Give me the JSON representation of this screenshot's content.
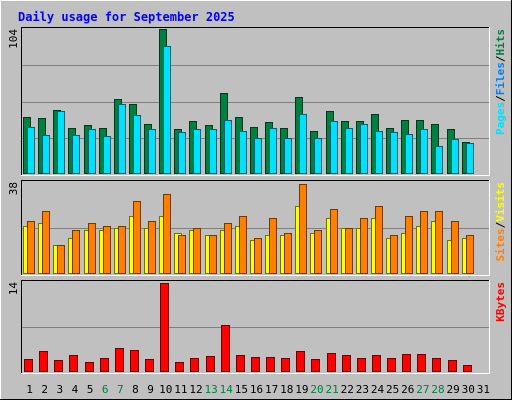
{
  "chart_data": {
    "type": "bar",
    "title": "Daily usage for September 2025",
    "colors": {
      "background": "#c0c0c0",
      "plot": "#c0c0c0",
      "title": "#0000ff",
      "hits": "#008040",
      "files": "#0080ff",
      "pages": "#00e0ff",
      "visits": "#ffff00",
      "sites": "#ff8000",
      "kbytes": "#ff0000",
      "weekend_day": "#008040",
      "weekday": "#000000"
    },
    "categories": [
      "1",
      "2",
      "3",
      "4",
      "5",
      "6",
      "7",
      "8",
      "9",
      "10",
      "11",
      "12",
      "13",
      "14",
      "15",
      "16",
      "17",
      "18",
      "19",
      "20",
      "21",
      "22",
      "23",
      "24",
      "25",
      "26",
      "27",
      "28",
      "29",
      "30",
      "31"
    ],
    "weekend_days": [
      "6",
      "7",
      "13",
      "14",
      "20",
      "21",
      "27",
      "28"
    ],
    "panels": [
      {
        "name": "hits-files-pages",
        "ymax": 104,
        "ymax_label": "104",
        "legend": [
          "Pages",
          "Files",
          "Hits"
        ],
        "series": [
          {
            "name": "Hits",
            "color": "#008040",
            "values": [
              41,
              40,
              46,
              33,
              35,
              33,
              54,
              50,
              36,
              104,
              32,
              38,
              35,
              58,
              41,
              34,
              37,
              33,
              55,
              31,
              45,
              38,
              38,
              43,
              33,
              39,
              39,
              36,
              32,
              23,
              0
            ]
          },
          {
            "name": "Files",
            "color": "#0080ff",
            "values": [
              0,
              0,
              0,
              0,
              0,
              0,
              0,
              0,
              0,
              0,
              0,
              0,
              0,
              0,
              0,
              0,
              0,
              0,
              0,
              0,
              0,
              0,
              0,
              0,
              0,
              0,
              0,
              0,
              0,
              0,
              0
            ]
          },
          {
            "name": "Pages",
            "color": "#00e0ff",
            "values": [
              34,
              28,
              45,
              28,
              32,
              27,
              50,
              42,
              32,
              92,
              30,
              32,
              32,
              39,
              31,
              26,
              33,
              26,
              43,
              26,
              38,
              33,
              36,
              31,
              30,
              29,
              32,
              20,
              25,
              22,
              0
            ]
          }
        ]
      },
      {
        "name": "visits-sites",
        "ymax": 38,
        "ymax_label": "38",
        "legend": [
          "Sites",
          "Visits"
        ],
        "series": [
          {
            "name": "Visits",
            "color": "#ffff00",
            "values": [
              20,
              21,
              12,
              15,
              18,
              18,
              19,
              24,
              19,
              24,
              17,
              18,
              16,
              18,
              20,
              14,
              16,
              16,
              28,
              17,
              23,
              19,
              19,
              23,
              15,
              17,
              20,
              22,
              14,
              15,
              0
            ]
          },
          {
            "name": "Sites",
            "color": "#ff8000",
            "values": [
              22,
              26,
              12,
              18,
              21,
              20,
              20,
              30,
              22,
              33,
              16,
              19,
              16,
              21,
              24,
              15,
              23,
              17,
              37,
              18,
              27,
              19,
              23,
              28,
              16,
              24,
              26,
              26,
              22,
              16,
              0
            ]
          }
        ]
      },
      {
        "name": "kbytes",
        "ymax": 14,
        "ymax_label": "14",
        "legend": [
          "KBytes"
        ],
        "series": [
          {
            "name": "KBytes",
            "color": "#ff0000",
            "values": [
              2,
              3.2,
              1.9,
              2.6,
              1.6,
              2.2,
              3.8,
              3.4,
              2,
              13.8,
              1.6,
              2.2,
              2.5,
              7.3,
              2.6,
              2.3,
              2.3,
              2.2,
              3.2,
              2,
              2.9,
              2.6,
              2.2,
              2.6,
              2.1,
              2.8,
              2.8,
              2.1,
              1.9,
              1.1,
              0
            ]
          }
        ]
      }
    ],
    "grid": true,
    "legend_placement": "right-vertical"
  }
}
